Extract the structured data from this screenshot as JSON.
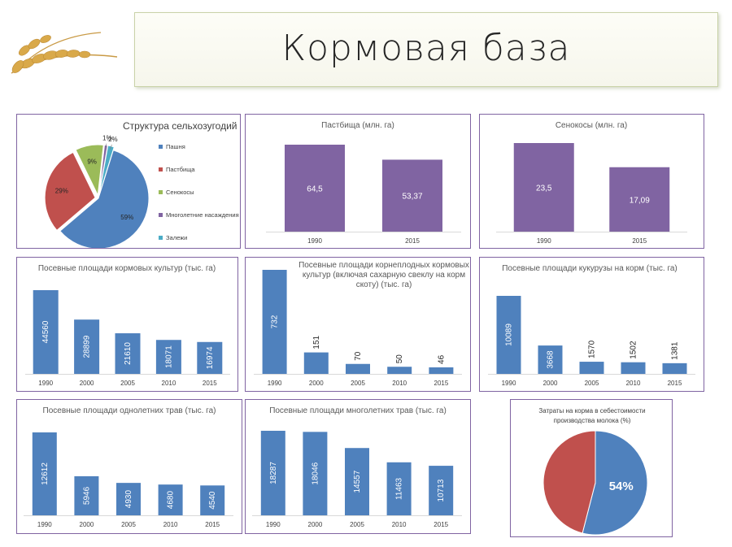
{
  "page": {
    "title": "Кормовая база"
  },
  "chart_data": [
    {
      "id": "structure",
      "type": "pie",
      "title": "Структура сельхозугодий",
      "categories": [
        "Пашня",
        "Пастбища",
        "Сенокосы",
        "Многолетние насаждения",
        "Залежи"
      ],
      "values": [
        59,
        29,
        9,
        1,
        2
      ],
      "labels": [
        "59%",
        "29%",
        "9%",
        "1%",
        "2%"
      ],
      "colors": [
        "#4f81bd",
        "#c0504d",
        "#9bbb59",
        "#8064a2",
        "#4bacc6"
      ],
      "legend": "right"
    },
    {
      "id": "pastures",
      "type": "bar",
      "title": "Пастбища (млн. га)",
      "categories": [
        "1990",
        "2015"
      ],
      "values": [
        64.5,
        53.37
      ],
      "labels": [
        "64,5",
        "53,37"
      ],
      "color": "#8064a2"
    },
    {
      "id": "hayfields",
      "type": "bar",
      "title": "Сенокосы (млн. га)",
      "categories": [
        "1990",
        "2015"
      ],
      "values": [
        23.5,
        17.09
      ],
      "labels": [
        "23,5",
        "17,09"
      ],
      "color": "#8064a2"
    },
    {
      "id": "fodder",
      "type": "bar",
      "title": "Посевные площади кормовых культур (тыс. га)",
      "categories": [
        "1990",
        "2000",
        "2005",
        "2010",
        "2015"
      ],
      "values": [
        44560,
        28899,
        21610,
        18071,
        16974
      ],
      "labels": [
        "44560",
        "28899",
        "21610",
        "18071",
        "16974"
      ],
      "color": "#4f81bd"
    },
    {
      "id": "rootcrops",
      "type": "bar",
      "title_lines": [
        "Посевные площади корнеплодных кормовых",
        "культур (включая сахарную свеклу на корм",
        "скоту) (тыс. га)"
      ],
      "categories": [
        "1990",
        "2000",
        "2005",
        "2010",
        "2015"
      ],
      "values": [
        732,
        151,
        70,
        50,
        46
      ],
      "labels": [
        "732",
        "151",
        "70",
        "50",
        "46"
      ],
      "color": "#4f81bd"
    },
    {
      "id": "corn",
      "type": "bar",
      "title": "Посевные площади кукурузы на корм (тыс. га)",
      "categories": [
        "1990",
        "2000",
        "2005",
        "2010",
        "2015"
      ],
      "values": [
        10089,
        3668,
        1570,
        1502,
        1381
      ],
      "labels": [
        "10089",
        "3668",
        "1570",
        "1502",
        "1381"
      ],
      "color": "#4f81bd"
    },
    {
      "id": "annualgrass",
      "type": "bar",
      "title": "Посевные площади однолетних трав (тыс. га)",
      "categories": [
        "1990",
        "2000",
        "2005",
        "2010",
        "2015"
      ],
      "values": [
        12612,
        5946,
        4930,
        4680,
        4540
      ],
      "labels": [
        "12612",
        "5946",
        "4930",
        "4680",
        "4540"
      ],
      "color": "#4f81bd"
    },
    {
      "id": "perennialgrass",
      "type": "bar",
      "title": "Посевные площади многолетних трав (тыс. га)",
      "categories": [
        "1990",
        "2000",
        "2005",
        "2010",
        "2015"
      ],
      "values": [
        18287,
        18046,
        14557,
        11463,
        10713
      ],
      "labels": [
        "18287",
        "18046",
        "14557",
        "11463",
        "10713"
      ],
      "color": "#4f81bd"
    },
    {
      "id": "feedcost",
      "type": "pie",
      "title_lines": [
        "Затраты на корма в себестоимости",
        "производства молока (%)"
      ],
      "values": [
        54,
        46
      ],
      "labels": [
        "54%",
        ""
      ],
      "colors": [
        "#4f81bd",
        "#c0504d"
      ]
    }
  ]
}
